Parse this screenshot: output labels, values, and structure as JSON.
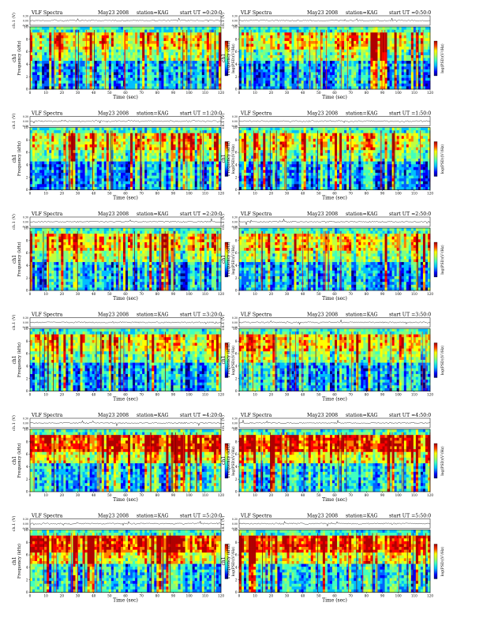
{
  "page": {
    "panel_title": "VLF Spectra",
    "date": "May23 2008",
    "station_label": "station=KAG",
    "start_prefix": "start  UT ="
  },
  "panels": [
    {
      "start_ut": "0:20:0"
    },
    {
      "start_ut": "0:50:0"
    },
    {
      "start_ut": "1:20:0"
    },
    {
      "start_ut": "1:50:0"
    },
    {
      "start_ut": "2:20:0"
    },
    {
      "start_ut": "2:50:0"
    },
    {
      "start_ut": "3:20:0"
    },
    {
      "start_ut": "3:50:0"
    },
    {
      "start_ut": "4:20:0"
    },
    {
      "start_ut": "4:50:0"
    },
    {
      "start_ut": "5:20:0"
    },
    {
      "start_ut": "5:50:0"
    }
  ],
  "chart_data": {
    "type": "heatmap",
    "xlabel": "Time (sec)",
    "ylabel": "Frequency (kHz)",
    "channel_label": "ch1",
    "waveform_label": "ch.1 (V)",
    "colorbar_label": "log(PSD)(V²/Hz)",
    "xlim": [
      0,
      120
    ],
    "ylim": [
      0,
      10
    ],
    "x_ticks": [
      0,
      10,
      20,
      30,
      40,
      50,
      60,
      70,
      80,
      90,
      100,
      110,
      120
    ],
    "y_ticks": [
      0,
      2,
      4,
      6,
      8,
      10
    ],
    "waveform_ylim": [
      -0.3,
      0.3
    ],
    "waveform_ticks": [
      "0.30",
      "0.00",
      "-0.30"
    ],
    "colorscale": [
      "#00007f",
      "#0000ff",
      "#0080ff",
      "#00e0ff",
      "#40ffbf",
      "#80ff80",
      "#c0ff40",
      "#ffff00",
      "#ff8000",
      "#ff0000",
      "#a00000"
    ]
  }
}
